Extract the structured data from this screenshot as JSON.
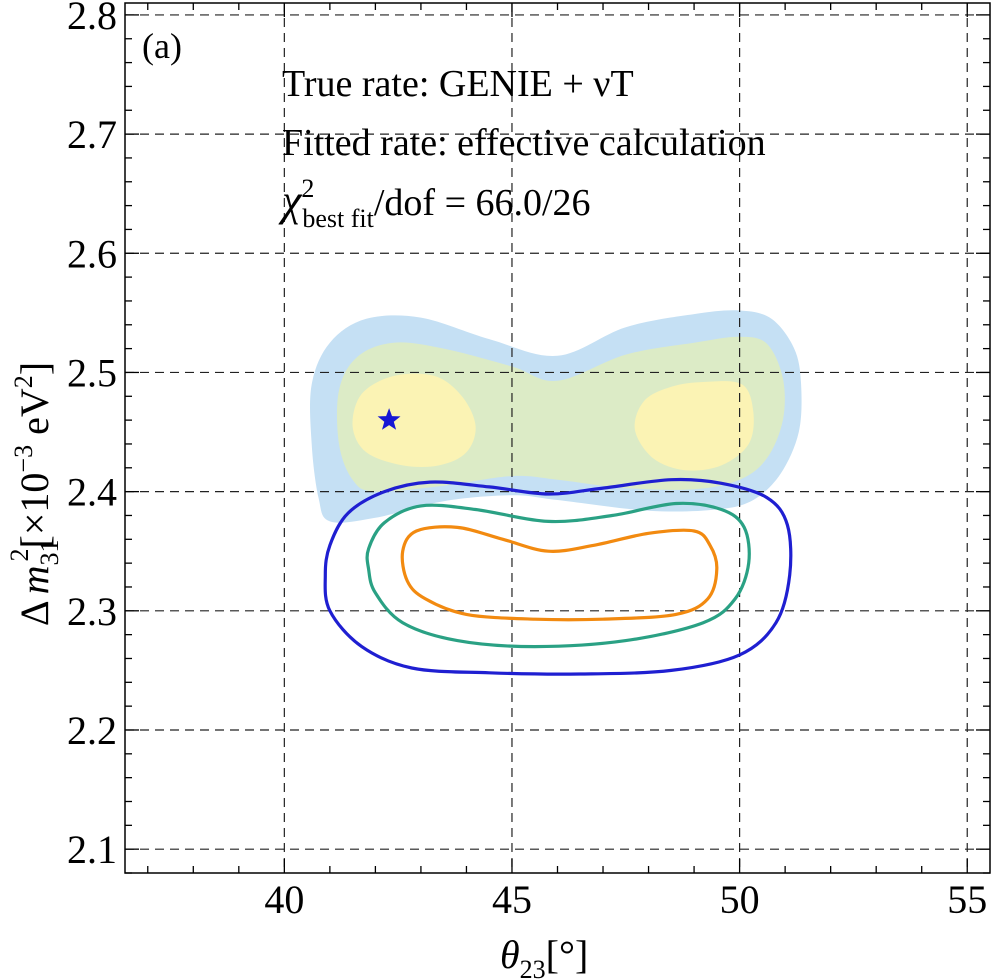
{
  "chart_data": {
    "type": "contour",
    "panel_label": "(a)",
    "annotations": {
      "line1": "True rate: GENIE + νT",
      "line2": "Fitted rate: effective calculation",
      "chi2_symbol": "χ",
      "chi2_sup": "2",
      "chi2_sub": "best fit",
      "chi2_rest": "/dof = 66.0/26"
    },
    "xlabel": {
      "symbol": "θ",
      "sub": "23",
      "unit": "[°]"
    },
    "ylabel": {
      "delta": "Δ",
      "m": "m",
      "sub": "31",
      "sup": "2",
      "bracket": "[×10",
      "exp": "−3",
      "unit": " eV",
      "unit_sup": "2",
      "close": "]"
    },
    "xlim": [
      36.5,
      55.5
    ],
    "ylim": [
      2.08,
      2.81
    ],
    "xticks": [
      40,
      45,
      50,
      55
    ],
    "yticks": [
      2.1,
      2.2,
      2.3,
      2.4,
      2.5,
      2.6,
      2.7,
      2.8
    ],
    "xtick_labels": [
      "40",
      "45",
      "50",
      "55"
    ],
    "ytick_labels": [
      "2.1",
      "2.2",
      "2.3",
      "2.4",
      "2.5",
      "2.6",
      "2.7",
      "2.8"
    ],
    "grid": true,
    "best_fit": {
      "x": 42.3,
      "y": 2.46,
      "marker": "star"
    },
    "colors": {
      "fill_outer": "#c5e0f4",
      "fill_middle": "#dcebc6",
      "fill_inner": "#fbf3b4",
      "line_outer": "#1f1fd1",
      "line_middle": "#2aa184",
      "line_inner": "#f28a10",
      "star": "#1717d4"
    },
    "filled_regions": [
      {
        "name": "fill_outer",
        "points": [
          [
            46.0,
            2.514
          ],
          [
            47.5,
            2.538
          ],
          [
            49.0,
            2.549
          ],
          [
            50.0,
            2.552
          ],
          [
            50.7,
            2.545
          ],
          [
            51.2,
            2.52
          ],
          [
            51.35,
            2.49
          ],
          [
            51.3,
            2.45
          ],
          [
            50.9,
            2.415
          ],
          [
            50.3,
            2.393
          ],
          [
            49.5,
            2.385
          ],
          [
            48.0,
            2.384
          ],
          [
            46.0,
            2.393
          ],
          [
            45.0,
            2.397
          ],
          [
            43.5,
            2.392
          ],
          [
            42.0,
            2.378
          ],
          [
            41.0,
            2.375
          ],
          [
            40.75,
            2.395
          ],
          [
            40.6,
            2.44
          ],
          [
            40.6,
            2.49
          ],
          [
            41.0,
            2.525
          ],
          [
            41.8,
            2.545
          ],
          [
            43.0,
            2.546
          ],
          [
            44.5,
            2.528
          ]
        ]
      },
      {
        "name": "fill_middle",
        "points": [
          [
            46.0,
            2.493
          ],
          [
            47.5,
            2.515
          ],
          [
            49.0,
            2.525
          ],
          [
            50.0,
            2.53
          ],
          [
            50.6,
            2.524
          ],
          [
            50.95,
            2.495
          ],
          [
            50.95,
            2.46
          ],
          [
            50.6,
            2.428
          ],
          [
            50.0,
            2.41
          ],
          [
            49.0,
            2.402
          ],
          [
            47.5,
            2.403
          ],
          [
            46.0,
            2.41
          ],
          [
            45.0,
            2.413
          ],
          [
            43.5,
            2.405
          ],
          [
            42.0,
            2.4
          ],
          [
            41.5,
            2.41
          ],
          [
            41.2,
            2.44
          ],
          [
            41.2,
            2.485
          ],
          [
            41.6,
            2.513
          ],
          [
            42.4,
            2.525
          ],
          [
            43.5,
            2.52
          ],
          [
            45.0,
            2.505
          ]
        ]
      },
      {
        "name": "fill_inner_left",
        "points": [
          [
            42.4,
            2.497
          ],
          [
            43.3,
            2.497
          ],
          [
            43.9,
            2.48
          ],
          [
            44.2,
            2.455
          ],
          [
            44.0,
            2.433
          ],
          [
            43.4,
            2.422
          ],
          [
            42.6,
            2.422
          ],
          [
            41.8,
            2.433
          ],
          [
            41.5,
            2.455
          ],
          [
            41.7,
            2.482
          ]
        ]
      },
      {
        "name": "fill_inner_right",
        "points": [
          [
            49.2,
            2.492
          ],
          [
            50.05,
            2.49
          ],
          [
            50.3,
            2.467
          ],
          [
            50.2,
            2.44
          ],
          [
            49.6,
            2.422
          ],
          [
            48.8,
            2.418
          ],
          [
            48.1,
            2.428
          ],
          [
            47.7,
            2.452
          ],
          [
            47.9,
            2.476
          ],
          [
            48.5,
            2.488
          ]
        ]
      }
    ],
    "contour_lines": [
      {
        "name": "line_outer",
        "points": [
          [
            41.0,
            2.355
          ],
          [
            41.4,
            2.382
          ],
          [
            42.2,
            2.4
          ],
          [
            43.2,
            2.408
          ],
          [
            44.5,
            2.404
          ],
          [
            45.8,
            2.398
          ],
          [
            47.0,
            2.403
          ],
          [
            48.5,
            2.41
          ],
          [
            49.6,
            2.407
          ],
          [
            50.6,
            2.395
          ],
          [
            51.05,
            2.372
          ],
          [
            51.1,
            2.33
          ],
          [
            50.8,
            2.29
          ],
          [
            50.0,
            2.263
          ],
          [
            48.5,
            2.25
          ],
          [
            46.5,
            2.247
          ],
          [
            44.5,
            2.248
          ],
          [
            42.8,
            2.252
          ],
          [
            41.7,
            2.27
          ],
          [
            41.0,
            2.3
          ],
          [
            40.9,
            2.33
          ]
        ]
      },
      {
        "name": "line_middle",
        "points": [
          [
            41.85,
            2.352
          ],
          [
            42.2,
            2.374
          ],
          [
            43.0,
            2.388
          ],
          [
            44.2,
            2.385
          ],
          [
            45.8,
            2.375
          ],
          [
            47.2,
            2.38
          ],
          [
            48.6,
            2.39
          ],
          [
            49.6,
            2.385
          ],
          [
            50.1,
            2.37
          ],
          [
            50.2,
            2.34
          ],
          [
            49.9,
            2.31
          ],
          [
            49.2,
            2.29
          ],
          [
            47.5,
            2.275
          ],
          [
            45.5,
            2.27
          ],
          [
            43.8,
            2.275
          ],
          [
            42.6,
            2.29
          ],
          [
            42.0,
            2.315
          ],
          [
            41.85,
            2.335
          ]
        ]
      },
      {
        "name": "line_inner",
        "points": [
          [
            42.6,
            2.35
          ],
          [
            42.9,
            2.367
          ],
          [
            43.8,
            2.37
          ],
          [
            44.8,
            2.36
          ],
          [
            45.8,
            2.35
          ],
          [
            46.8,
            2.355
          ],
          [
            48.0,
            2.365
          ],
          [
            49.0,
            2.367
          ],
          [
            49.35,
            2.355
          ],
          [
            49.5,
            2.335
          ],
          [
            49.3,
            2.31
          ],
          [
            48.6,
            2.297
          ],
          [
            47.0,
            2.293
          ],
          [
            45.5,
            2.293
          ],
          [
            44.0,
            2.297
          ],
          [
            43.1,
            2.31
          ],
          [
            42.7,
            2.325
          ]
        ]
      }
    ]
  }
}
